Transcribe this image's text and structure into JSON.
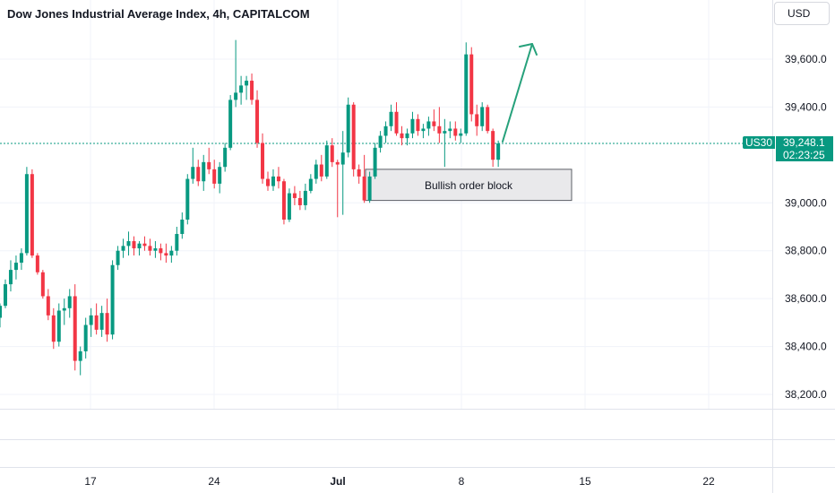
{
  "header": {
    "title": "Dow Jones Industrial Average Index, 4h, CAPITALCOM",
    "currency": "USD"
  },
  "price_marker": {
    "symbol": "US30",
    "price": "39,248.1",
    "countdown": "02:23:25"
  },
  "annotation": {
    "order_block_label": "Bullish order block"
  },
  "colors": {
    "up": "#089981",
    "down": "#f23645",
    "grid": "#f0f3fa",
    "arrow": "#26a17b",
    "current_line": "#089981"
  },
  "chart_data": {
    "type": "candlestick",
    "title": "Dow Jones Industrial Average Index, 4h, CAPITALCOM",
    "y_axis": {
      "ticks": [
        39600,
        39400,
        39000,
        38800,
        38600,
        38400,
        38200
      ],
      "tick_labels": [
        "39,600.0",
        "39,400.0",
        "39,000.0",
        "38,800.0",
        "38,600.0",
        "38,400.0",
        "38,200.0"
      ],
      "ylim": [
        38120,
        39820
      ]
    },
    "x_axis": {
      "tick_labels": [
        "17",
        "24",
        "Jul",
        "8",
        "15",
        "22"
      ]
    },
    "current_price": 39248.1,
    "order_block": {
      "low": 39010,
      "high": 39140,
      "label": "Bullish order block"
    },
    "arrow": {
      "from": [
        39260
      ],
      "to": [
        39670
      ]
    },
    "candles": [
      [
        38520,
        38580,
        38480,
        38570
      ],
      [
        38570,
        38680,
        38560,
        38660
      ],
      [
        38660,
        38760,
        38630,
        38720
      ],
      [
        38720,
        38780,
        38680,
        38750
      ],
      [
        38750,
        38810,
        38720,
        38790
      ],
      [
        38790,
        39150,
        38780,
        39120
      ],
      [
        39120,
        39140,
        38770,
        38780
      ],
      [
        38780,
        38790,
        38700,
        38710
      ],
      [
        38710,
        38720,
        38600,
        38610
      ],
      [
        38610,
        38640,
        38510,
        38530
      ],
      [
        38530,
        38560,
        38390,
        38420
      ],
      [
        38420,
        38580,
        38400,
        38550
      ],
      [
        38550,
        38600,
        38490,
        38560
      ],
      [
        38560,
        38640,
        38520,
        38610
      ],
      [
        38610,
        38660,
        38300,
        38340
      ],
      [
        38340,
        38400,
        38280,
        38380
      ],
      [
        38380,
        38520,
        38350,
        38490
      ],
      [
        38490,
        38560,
        38440,
        38530
      ],
      [
        38530,
        38580,
        38450,
        38470
      ],
      [
        38470,
        38570,
        38440,
        38540
      ],
      [
        38540,
        38600,
        38420,
        38450
      ],
      [
        38450,
        38760,
        38430,
        38740
      ],
      [
        38740,
        38820,
        38720,
        38800
      ],
      [
        38800,
        38850,
        38770,
        38820
      ],
      [
        38820,
        38880,
        38780,
        38840
      ],
      [
        38840,
        38860,
        38780,
        38810
      ],
      [
        38810,
        38840,
        38780,
        38830
      ],
      [
        38830,
        38860,
        38800,
        38820
      ],
      [
        38820,
        38850,
        38780,
        38800
      ],
      [
        38800,
        38840,
        38770,
        38810
      ],
      [
        38810,
        38830,
        38760,
        38790
      ],
      [
        38790,
        38830,
        38750,
        38780
      ],
      [
        38780,
        38820,
        38750,
        38800
      ],
      [
        38800,
        38900,
        38780,
        38870
      ],
      [
        38870,
        38960,
        38850,
        38930
      ],
      [
        38930,
        39120,
        38910,
        39100
      ],
      [
        39100,
        39230,
        39080,
        39150
      ],
      [
        39150,
        39180,
        39070,
        39090
      ],
      [
        39090,
        39200,
        39050,
        39170
      ],
      [
        39170,
        39230,
        39120,
        39140
      ],
      [
        39140,
        39180,
        39060,
        39080
      ],
      [
        39080,
        39170,
        39040,
        39150
      ],
      [
        39150,
        39250,
        39130,
        39230
      ],
      [
        39230,
        39450,
        39220,
        39430
      ],
      [
        39430,
        39680,
        39400,
        39460
      ],
      [
        39460,
        39530,
        39410,
        39490
      ],
      [
        39490,
        39530,
        39430,
        39510
      ],
      [
        39510,
        39540,
        39410,
        39430
      ],
      [
        39430,
        39470,
        39230,
        39250
      ],
      [
        39250,
        39290,
        39080,
        39100
      ],
      [
        39100,
        39130,
        39050,
        39070
      ],
      [
        39070,
        39140,
        39050,
        39110
      ],
      [
        39110,
        39150,
        39060,
        39090
      ],
      [
        39090,
        39100,
        38910,
        38930
      ],
      [
        38930,
        39060,
        38920,
        39040
      ],
      [
        39040,
        39070,
        38990,
        39020
      ],
      [
        39020,
        39050,
        38970,
        38990
      ],
      [
        38990,
        39080,
        38970,
        39050
      ],
      [
        39050,
        39120,
        39040,
        39100
      ],
      [
        39100,
        39180,
        39080,
        39160
      ],
      [
        39160,
        39200,
        39090,
        39110
      ],
      [
        39110,
        39260,
        39100,
        39240
      ],
      [
        39240,
        39270,
        39150,
        39170
      ],
      [
        39170,
        39180,
        38940,
        39160
      ],
      [
        39160,
        39300,
        38950,
        39210
      ],
      [
        39210,
        39440,
        39190,
        39410
      ],
      [
        39410,
        39420,
        39110,
        39140
      ],
      [
        39140,
        39160,
        39080,
        39110
      ],
      [
        39110,
        39200,
        39000,
        39010
      ],
      [
        39010,
        39130,
        39000,
        39110
      ],
      [
        39110,
        39250,
        39100,
        39230
      ],
      [
        39230,
        39300,
        39210,
        39280
      ],
      [
        39280,
        39340,
        39250,
        39320
      ],
      [
        39320,
        39410,
        39300,
        39380
      ],
      [
        39380,
        39420,
        39280,
        39290
      ],
      [
        39290,
        39320,
        39240,
        39270
      ],
      [
        39270,
        39310,
        39240,
        39290
      ],
      [
        39290,
        39380,
        39270,
        39350
      ],
      [
        39350,
        39370,
        39280,
        39300
      ],
      [
        39300,
        39330,
        39270,
        39310
      ],
      [
        39310,
        39360,
        39280,
        39340
      ],
      [
        39340,
        39390,
        39300,
        39320
      ],
      [
        39320,
        39400,
        39250,
        39290
      ],
      [
        39290,
        39350,
        39150,
        39300
      ],
      [
        39300,
        39340,
        39270,
        39310
      ],
      [
        39310,
        39340,
        39260,
        39280
      ],
      [
        39280,
        39310,
        39250,
        39290
      ],
      [
        39290,
        39670,
        39280,
        39620
      ],
      [
        39620,
        39650,
        39340,
        39370
      ],
      [
        39370,
        39410,
        39280,
        39320
      ],
      [
        39320,
        39420,
        39300,
        39400
      ],
      [
        39400,
        39410,
        39290,
        39300
      ],
      [
        39300,
        39310,
        39150,
        39180
      ],
      [
        39180,
        39260,
        39150,
        39248
      ]
    ]
  }
}
